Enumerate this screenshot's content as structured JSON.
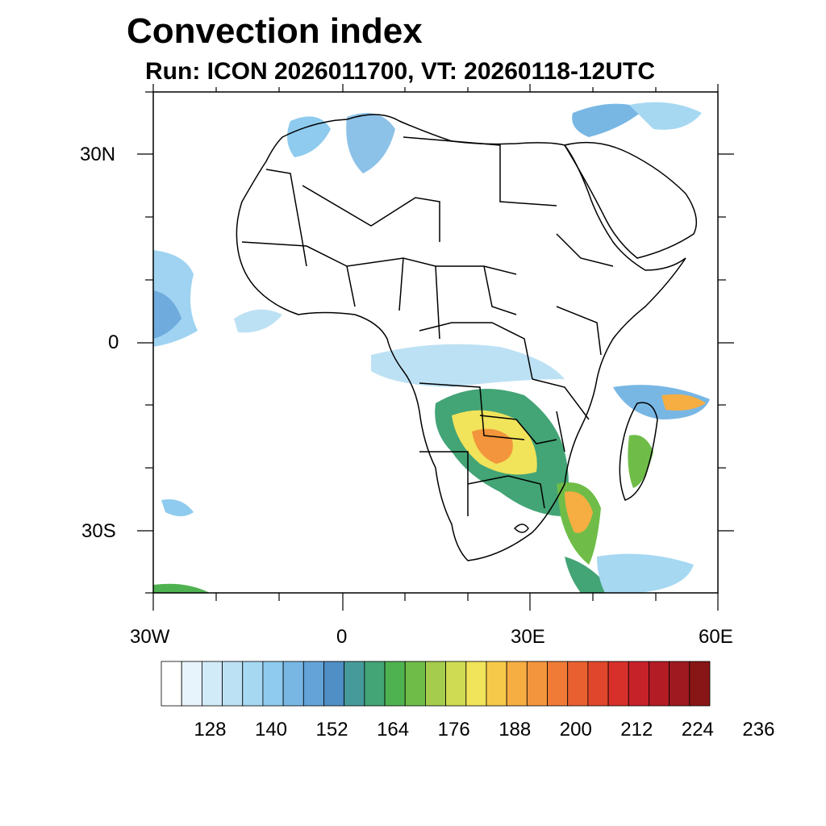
{
  "title": "Convection index",
  "subtitle": "Run: ICON 2026011700,  VT: 20260118-12UTC",
  "map": {
    "lon_range": [
      -30,
      60
    ],
    "lat_range": [
      -40,
      40
    ],
    "lat_labels": [
      "30N",
      "0",
      "30S"
    ],
    "lon_labels": [
      "30W",
      "0",
      "30E",
      "60E"
    ],
    "field_colors": {
      "light": "#a9d8f3",
      "mid": "#6fb0df",
      "teal": "#3f9c86",
      "green": "#54b84a",
      "yellow": "#f0e35a",
      "orange": "#f29a3c",
      "red": "#d7302b"
    }
  },
  "colorbar": {
    "colors": [
      "#ffffff",
      "#e8f4fb",
      "#d2ebf8",
      "#bde1f4",
      "#a6d8f2",
      "#8ecbee",
      "#78b7e4",
      "#63a3d8",
      "#4f8fc5",
      "#469b9a",
      "#43a476",
      "#4fb250",
      "#6fbd48",
      "#a5cc4c",
      "#cfdb52",
      "#f1e35a",
      "#f7c94a",
      "#f6ae42",
      "#f3953c",
      "#ef7b36",
      "#e8602f",
      "#e0462b",
      "#d7302b",
      "#c62229",
      "#b31c25",
      "#9e1a20",
      "#891616"
    ],
    "labels": [
      "128",
      "140",
      "152",
      "164",
      "176",
      "188",
      "200",
      "212",
      "224",
      "236"
    ]
  }
}
